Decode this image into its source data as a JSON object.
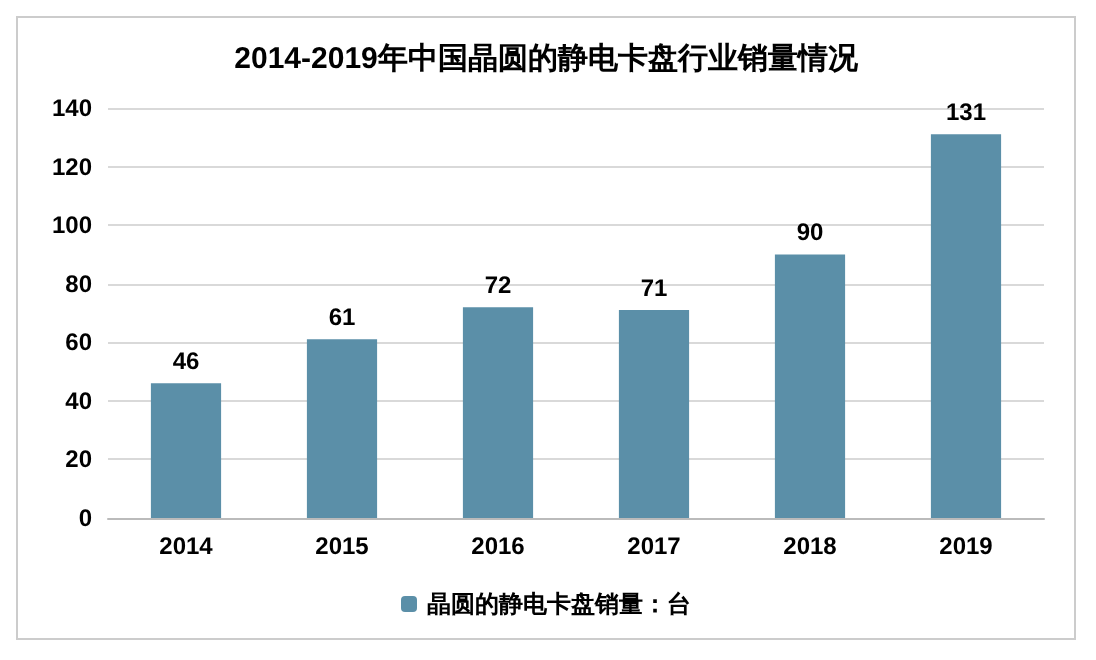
{
  "chart_data": {
    "type": "bar",
    "title": "2014-2019年中国晶圆的静电卡盘行业销量情况",
    "categories": [
      "2014",
      "2015",
      "2016",
      "2017",
      "2018",
      "2019"
    ],
    "series": [
      {
        "name": "晶圆的静电卡盘销量：台",
        "color": "#5b8fa8",
        "values": [
          46,
          61,
          72,
          71,
          90,
          131
        ]
      }
    ],
    "ylim": [
      0,
      140
    ],
    "yticks": [
      0,
      20,
      40,
      60,
      80,
      100,
      120,
      140
    ],
    "grid": "y",
    "legend": "bottom",
    "data_labels": true
  }
}
